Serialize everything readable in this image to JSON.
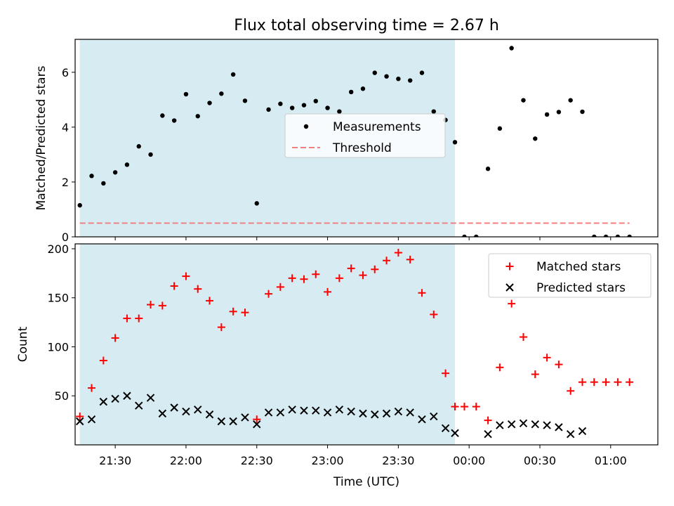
{
  "figure": {
    "title": "Flux total observing time = 2.67 h",
    "xlabel": "Time (UTC)"
  },
  "chart_data": [
    {
      "type": "scatter",
      "ylabel": "Matched/Predicted stars",
      "ylim": [
        0,
        7.2
      ],
      "xlim": [
        "21:13",
        "01:20"
      ],
      "yticks": [
        0,
        2,
        4,
        6
      ],
      "shaded_interval": [
        "21:15",
        "23:54"
      ],
      "shade_color": "#add8e6",
      "legend": {
        "placement": "center-right"
      },
      "series": [
        {
          "name": "Measurements",
          "marker": "dot",
          "color": "#000000",
          "x": [
            "21:15",
            "21:20",
            "21:25",
            "21:30",
            "21:35",
            "21:40",
            "21:45",
            "21:50",
            "21:55",
            "22:00",
            "22:05",
            "22:10",
            "22:15",
            "22:20",
            "22:25",
            "22:30",
            "22:35",
            "22:40",
            "22:45",
            "22:50",
            "22:55",
            "23:00",
            "23:05",
            "23:10",
            "23:15",
            "23:20",
            "23:25",
            "23:30",
            "23:35",
            "23:40",
            "23:45",
            "23:50",
            "23:54",
            "23:58",
            "00:03",
            "00:08",
            "00:13",
            "00:18",
            "00:23",
            "00:28",
            "00:33",
            "00:38",
            "00:43",
            "00:48",
            "00:53",
            "00:58",
            "01:03",
            "01:08"
          ],
          "y": [
            1.15,
            2.22,
            1.95,
            2.35,
            2.63,
            3.3,
            3.0,
            4.42,
            4.24,
            5.2,
            4.4,
            4.88,
            5.22,
            5.92,
            4.96,
            1.22,
            4.64,
            4.85,
            4.7,
            4.8,
            4.95,
            4.7,
            4.57,
            5.28,
            5.4,
            5.98,
            5.85,
            5.76,
            5.7,
            5.98,
            4.57,
            4.26,
            3.45,
            0.0,
            0.0,
            2.48,
            3.95,
            6.88,
            4.98,
            3.58,
            4.46,
            4.55,
            4.98,
            4.56,
            0.0,
            0.0,
            0.0,
            0.0
          ]
        },
        {
          "name": "Threshold",
          "style": "dashed",
          "color": "#f08080",
          "x": [
            "21:15",
            "01:08"
          ],
          "y": [
            0.5,
            0.5
          ]
        }
      ]
    },
    {
      "type": "scatter",
      "ylabel": "Count",
      "ylim": [
        0,
        205
      ],
      "xlim": [
        "21:13",
        "01:20"
      ],
      "yticks": [
        50,
        100,
        150,
        200
      ],
      "xticks": [
        "21:30",
        "22:00",
        "22:30",
        "23:00",
        "23:30",
        "00:00",
        "00:30",
        "01:00"
      ],
      "shaded_interval": [
        "21:15",
        "23:54"
      ],
      "shade_color": "#add8e6",
      "legend": {
        "placement": "top-right"
      },
      "series": [
        {
          "name": "Matched stars",
          "marker": "plus",
          "color": "#ff0000",
          "x": [
            "21:15",
            "21:20",
            "21:25",
            "21:30",
            "21:35",
            "21:40",
            "21:45",
            "21:50",
            "21:55",
            "22:00",
            "22:05",
            "22:10",
            "22:15",
            "22:20",
            "22:25",
            "22:30",
            "22:35",
            "22:40",
            "22:45",
            "22:50",
            "22:55",
            "23:00",
            "23:05",
            "23:10",
            "23:15",
            "23:20",
            "23:25",
            "23:30",
            "23:35",
            "23:40",
            "23:45",
            "23:50",
            "23:54",
            "23:58",
            "00:03",
            "00:08",
            "00:13",
            "00:18",
            "00:23",
            "00:28",
            "00:33",
            "00:38",
            "00:43",
            "00:48",
            "00:53",
            "00:58",
            "01:03",
            "01:08"
          ],
          "y": [
            29,
            58,
            86,
            109,
            129,
            129,
            143,
            142,
            162,
            172,
            159,
            147,
            120,
            136,
            135,
            26,
            154,
            161,
            170,
            169,
            174,
            156,
            170,
            180,
            173,
            179,
            188,
            196,
            189,
            155,
            133,
            73,
            39,
            39,
            39,
            25,
            79,
            144,
            110,
            72,
            89,
            82,
            55,
            64,
            64,
            64,
            64,
            64
          ]
        },
        {
          "name": "Predicted stars",
          "marker": "x",
          "color": "#000000",
          "x": [
            "21:15",
            "21:20",
            "21:25",
            "21:30",
            "21:35",
            "21:40",
            "21:45",
            "21:50",
            "21:55",
            "22:00",
            "22:05",
            "22:10",
            "22:15",
            "22:20",
            "22:25",
            "22:30",
            "22:35",
            "22:40",
            "22:45",
            "22:50",
            "22:55",
            "23:00",
            "23:05",
            "23:10",
            "23:15",
            "23:20",
            "23:25",
            "23:30",
            "23:35",
            "23:40",
            "23:45",
            "23:50",
            "23:54",
            "00:08",
            "00:13",
            "00:18",
            "00:23",
            "00:28",
            "00:33",
            "00:38",
            "00:43",
            "00:48"
          ],
          "y": [
            24,
            26,
            44,
            47,
            50,
            40,
            48,
            32,
            38,
            34,
            36,
            31,
            24,
            24,
            28,
            21,
            33,
            33,
            36,
            35,
            35,
            33,
            36,
            34,
            32,
            31,
            32,
            34,
            33,
            26,
            29,
            17,
            12,
            11,
            20,
            21,
            22,
            21,
            20,
            18,
            11,
            14
          ]
        }
      ]
    }
  ]
}
